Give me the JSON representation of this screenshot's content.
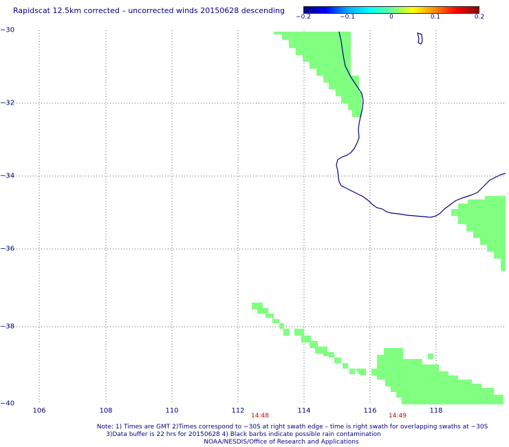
{
  "title": "Rapidscat 12.5km corrected – uncorrected winds 20150628 descending",
  "colorbar": {
    "ticks": [
      "−0.2",
      "−0.1",
      "0",
      "0.1",
      "0.2"
    ],
    "stops": [
      "#000080",
      "#0000ff",
      "#00aaff",
      "#00ffff",
      "#66ff99",
      "#ffff00",
      "#ff8800",
      "#ff0000",
      "#8b0000"
    ]
  },
  "map": {
    "lon_range": [
      105,
      120
    ],
    "lat_range": [
      -40,
      -30
    ],
    "lat_labels": [
      "−30",
      "−32",
      "−34",
      "−36",
      "−38",
      "−40"
    ],
    "lon_labels": [
      "106",
      "108",
      "110",
      "112",
      "114",
      "116",
      "118"
    ],
    "swath_color": "#80ff80",
    "coast_color": "#000080",
    "grid_color": "#555555"
  },
  "time_labels": [
    "14:48",
    "14:49"
  ],
  "notes": [
    "Note: 1) Times are GMT 2)Times correspond to −30S at right swath edge – time is right swath for overlapping swaths at −30S",
    "3)Data buffer is 22 hrs for 20150628 4) Black barbs indicate possible rain contamination",
    "NOAA/NESDIS/Office of Research and Applications"
  ]
}
